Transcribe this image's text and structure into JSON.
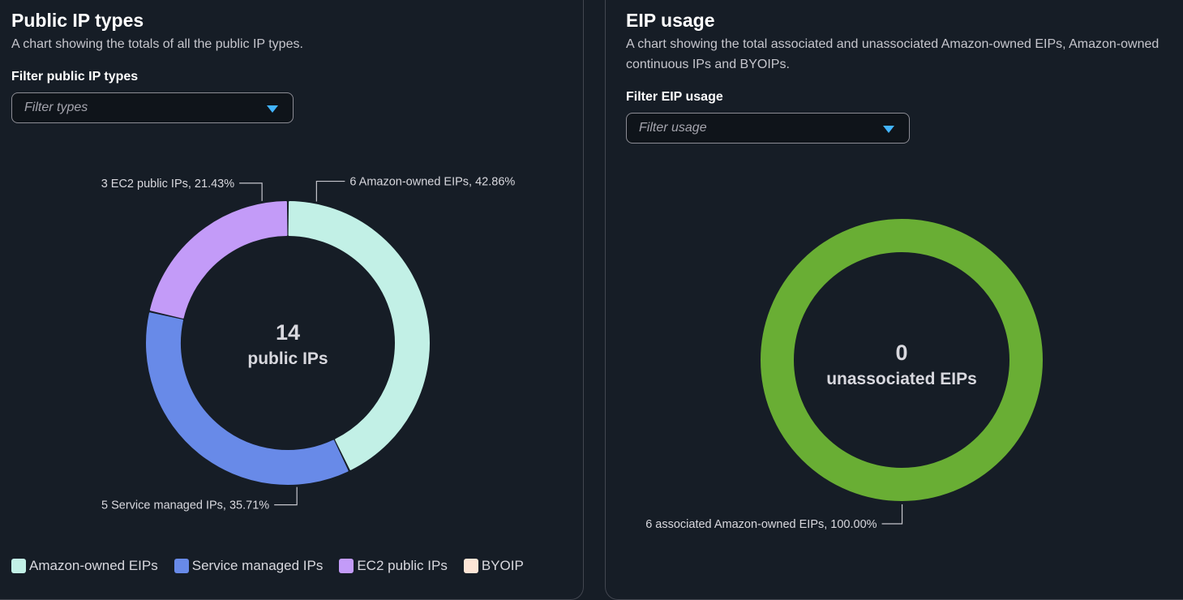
{
  "panels": {
    "left": {
      "title": "Public IP types",
      "description": "A chart showing the totals of all the public IP types.",
      "filter_label": "Filter public IP types",
      "filter_placeholder": "Filter types"
    },
    "right": {
      "title": "EIP usage",
      "description": "A chart showing the total associated and unassociated Amazon-owned EIPs, Amazon-owned continuous IPs and BYOIPs.",
      "filter_label": "Filter EIP usage",
      "filter_placeholder": "Filter usage"
    }
  },
  "chart_data": [
    {
      "type": "pie",
      "variant": "donut",
      "center_value": "14",
      "center_label": "public IPs",
      "categories": [
        "Amazon-owned EIPs",
        "Service managed IPs",
        "EC2 public IPs",
        "BYOIP"
      ],
      "values": [
        6,
        5,
        3,
        0
      ],
      "slice_labels": [
        "6 Amazon-owned EIPs, 42.86%",
        "5 Service managed IPs, 35.71%",
        "3 EC2 public IPs, 21.43%",
        ""
      ],
      "colors": [
        "#c2f0e6",
        "#688ae8",
        "#c39bf8",
        "#fde5d6"
      ],
      "legend": [
        "Amazon-owned EIPs",
        "Service managed IPs",
        "EC2 public IPs",
        "BYOIP"
      ],
      "legend_position": "bottom-left"
    },
    {
      "type": "pie",
      "variant": "donut",
      "center_value": "0",
      "center_label": "unassociated EIPs",
      "categories": [
        "associated Amazon-owned EIPs"
      ],
      "values": [
        6
      ],
      "slice_labels": [
        "6 associated Amazon-owned EIPs, 100.00%"
      ],
      "colors": [
        "#69ae34"
      ]
    }
  ],
  "colors": {
    "background": "#161d26",
    "panel_border": "#424650",
    "leader_line": "#c6c6cd",
    "accent": "#42b4ff"
  }
}
